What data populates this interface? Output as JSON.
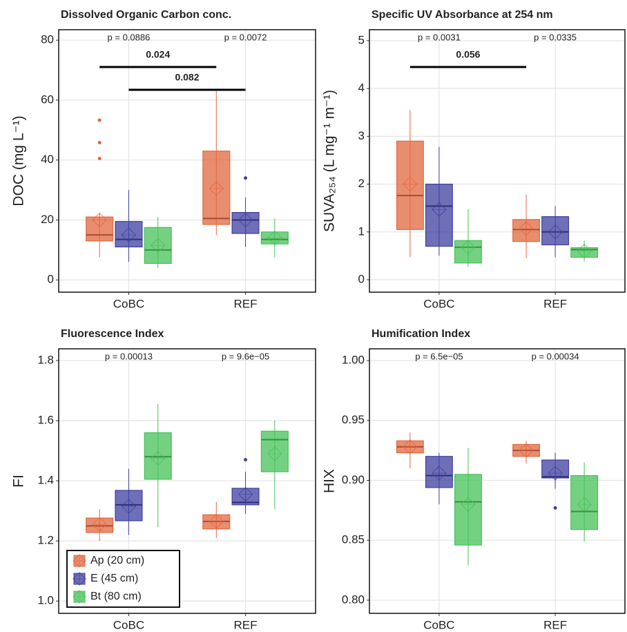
{
  "chart_data": [
    {
      "type": "box",
      "title": "Dissolved Organic Carbon conc.",
      "y_label": "DOC (mg L⁻¹)",
      "categories": [
        "CoBC",
        "REF"
      ],
      "ylim": [
        -4.1,
        83.5
      ],
      "yticks": [
        0,
        20,
        40,
        60,
        80
      ],
      "grid": true,
      "p_values": [
        "p = 0.0886",
        "p = 0.0072"
      ],
      "brackets": [
        {
          "label": "0.024",
          "series": 0
        },
        {
          "label": "0.082",
          "series": 1
        }
      ],
      "series": [
        {
          "name": "Ap (20 cm)",
          "color": "#e2673f",
          "values": [
            {
              "min": 7.5,
              "q1": 13,
              "median": 15,
              "q3": 21,
              "max": 22,
              "mean": 20,
              "outliers": [
                40.5,
                45.8,
                53.3
              ]
            },
            {
              "min": 15,
              "q1": 18.5,
              "median": 20.5,
              "q3": 43,
              "max": 63,
              "mean": 30.5,
              "outliers": []
            }
          ]
        },
        {
          "name": "E (45 cm)",
          "color": "#3f3fa0",
          "values": [
            {
              "min": 6,
              "q1": 11,
              "median": 13.5,
              "q3": 19.5,
              "max": 30,
              "mean": 15,
              "outliers": []
            },
            {
              "min": 11,
              "q1": 15.5,
              "median": 20,
              "q3": 22.5,
              "max": 27.5,
              "mean": 20,
              "outliers": [
                34
              ]
            }
          ]
        },
        {
          "name": "Bt (80 cm)",
          "color": "#45c158",
          "values": [
            {
              "min": 4,
              "q1": 5.5,
              "median": 10,
              "q3": 17.5,
              "max": 21,
              "mean": 11.5,
              "outliers": []
            },
            {
              "min": 7.5,
              "q1": 12,
              "median": 13.5,
              "q3": 16,
              "max": 20.5,
              "mean": 14,
              "outliers": []
            }
          ]
        }
      ]
    },
    {
      "type": "box",
      "title": "Specific UV Absorbance at 254 nm",
      "y_label": "SUVA₂₅₄ (L mg⁻¹ m⁻¹)",
      "categories": [
        "CoBC",
        "REF"
      ],
      "ylim": [
        -0.26,
        5.23
      ],
      "yticks": [
        0,
        1,
        2,
        3,
        4,
        5
      ],
      "grid": true,
      "p_values": [
        "p = 0.0031",
        "p = 0.0335"
      ],
      "brackets": [
        {
          "label": "0.056",
          "series": 0
        }
      ],
      "series": [
        {
          "name": "Ap (20 cm)",
          "color": "#e2673f",
          "values": [
            {
              "min": 0.47,
              "q1": 1.05,
              "median": 1.76,
              "q3": 2.9,
              "max": 3.55,
              "mean": 2.0,
              "outliers": []
            },
            {
              "min": 0.45,
              "q1": 0.8,
              "median": 1.05,
              "q3": 1.26,
              "max": 1.78,
              "mean": 1.07,
              "outliers": []
            }
          ]
        },
        {
          "name": "E (45 cm)",
          "color": "#3f3fa0",
          "values": [
            {
              "min": 0.5,
              "q1": 0.7,
              "median": 1.54,
              "q3": 2.0,
              "max": 2.78,
              "mean": 1.47,
              "outliers": []
            },
            {
              "min": 0.47,
              "q1": 0.73,
              "median": 1.0,
              "q3": 1.32,
              "max": 1.54,
              "mean": 1.0,
              "outliers": []
            }
          ]
        },
        {
          "name": "Bt (80 cm)",
          "color": "#45c158",
          "values": [
            {
              "min": 0.27,
              "q1": 0.35,
              "median": 0.68,
              "q3": 0.82,
              "max": 1.48,
              "mean": 0.68,
              "outliers": []
            },
            {
              "min": 0.38,
              "q1": 0.47,
              "median": 0.63,
              "q3": 0.67,
              "max": 0.82,
              "mean": 0.6,
              "outliers": []
            }
          ]
        }
      ]
    },
    {
      "type": "box",
      "title": "Fluorescence Index",
      "y_label": "FI",
      "categories": [
        "CoBC",
        "REF"
      ],
      "ylim": [
        0.959,
        1.839
      ],
      "yticks": [
        {
          "value": 1,
          "label": "1.0"
        },
        1.2,
        1.4,
        1.6,
        1.8
      ],
      "grid": true,
      "legend": "lower left",
      "p_values": [
        "p = 0.00013",
        "p = 9.6e−05"
      ],
      "series": [
        {
          "name": "Ap (20 cm)",
          "color": "#e2673f",
          "values": [
            {
              "min": 1.2,
              "q1": 1.228,
              "median": 1.25,
              "q3": 1.276,
              "max": 1.305,
              "mean": 1.255,
              "outliers": []
            },
            {
              "min": 1.21,
              "q1": 1.24,
              "median": 1.265,
              "q3": 1.287,
              "max": 1.33,
              "mean": 1.265,
              "outliers": []
            }
          ]
        },
        {
          "name": "E (45 cm)",
          "color": "#3f3fa0",
          "values": [
            {
              "min": 1.22,
              "q1": 1.267,
              "median": 1.32,
              "q3": 1.368,
              "max": 1.44,
              "mean": 1.315,
              "outliers": []
            },
            {
              "min": 1.29,
              "q1": 1.32,
              "median": 1.328,
              "q3": 1.375,
              "max": 1.43,
              "mean": 1.355,
              "outliers": [
                1.47
              ]
            }
          ]
        },
        {
          "name": "Bt (80 cm)",
          "color": "#45c158",
          "values": [
            {
              "min": 1.245,
              "q1": 1.405,
              "median": 1.48,
              "q3": 1.56,
              "max": 1.655,
              "mean": 1.475,
              "outliers": []
            },
            {
              "min": 1.305,
              "q1": 1.43,
              "median": 1.537,
              "q3": 1.565,
              "max": 1.6,
              "mean": 1.49,
              "outliers": []
            }
          ]
        }
      ]
    },
    {
      "type": "box",
      "title": "Humification Index",
      "y_label": "HIX",
      "categories": [
        "CoBC",
        "REF"
      ],
      "ylim": [
        0.789,
        1.0098
      ],
      "yticks": [
        {
          "value": 0.8,
          "label": "0.80"
        },
        0.85,
        {
          "value": 0.9,
          "label": "0.90"
        },
        0.95,
        {
          "value": 1,
          "label": "1.00"
        }
      ],
      "grid": true,
      "p_values": [
        "p = 6.5e−05",
        "p = 0.00034"
      ],
      "series": [
        {
          "name": "Ap (20 cm)",
          "color": "#e2673f",
          "values": [
            {
              "min": 0.91,
              "q1": 0.923,
              "median": 0.928,
              "q3": 0.933,
              "max": 0.94,
              "mean": 0.928,
              "outliers": []
            },
            {
              "min": 0.914,
              "q1": 0.92,
              "median": 0.925,
              "q3": 0.93,
              "max": 0.933,
              "mean": 0.925,
              "outliers": []
            }
          ]
        },
        {
          "name": "E (45 cm)",
          "color": "#3f3fa0",
          "values": [
            {
              "min": 0.88,
              "q1": 0.894,
              "median": 0.904,
              "q3": 0.92,
              "max": 0.923,
              "mean": 0.906,
              "outliers": []
            },
            {
              "min": 0.893,
              "q1": 0.902,
              "median": 0.903,
              "q3": 0.917,
              "max": 0.923,
              "mean": 0.906,
              "outliers": [
                0.877
              ]
            }
          ]
        },
        {
          "name": "Bt (80 cm)",
          "color": "#45c158",
          "values": [
            {
              "min": 0.829,
              "q1": 0.846,
              "median": 0.882,
              "q3": 0.905,
              "max": 0.927,
              "mean": 0.88,
              "outliers": []
            },
            {
              "min": 0.849,
              "q1": 0.859,
              "median": 0.874,
              "q3": 0.904,
              "max": 0.915,
              "mean": 0.88,
              "outliers": []
            }
          ]
        }
      ]
    }
  ]
}
